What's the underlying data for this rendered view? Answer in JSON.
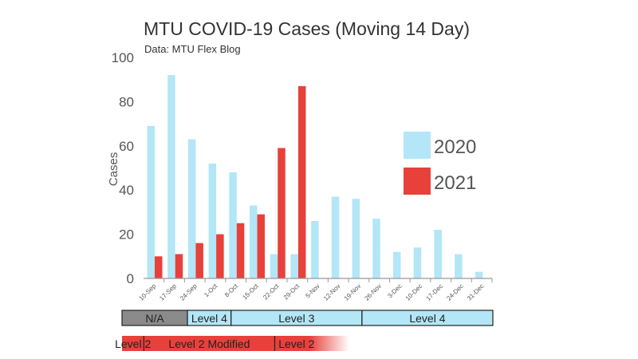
{
  "chart_data": {
    "type": "bar",
    "title": "MTU COVID-19 Cases (Moving 14 Day)",
    "subtitle": "Data: MTU Flex Blog",
    "ylabel": "Cases",
    "xlabel": "",
    "ylim": [
      0,
      100
    ],
    "yticks": [
      0,
      20,
      40,
      60,
      80,
      100
    ],
    "categories": [
      "10-Sep",
      "17-Sep",
      "24-Sep",
      "1-Oct",
      "8-Oct",
      "15-Oct",
      "22-Oct",
      "29-Oct",
      "5-Nov",
      "12-Nov",
      "19-Nov",
      "26-Nov",
      "3-Dec",
      "10-Dec",
      "17-Dec",
      "24-Dec",
      "31-Dec"
    ],
    "series": [
      {
        "name": "2020",
        "color": "#b3e6f7",
        "values": [
          69,
          92,
          63,
          52,
          48,
          33,
          11,
          11,
          26,
          37,
          36,
          27,
          12,
          14,
          22,
          11,
          3
        ]
      },
      {
        "name": "2021",
        "color": "#e8403a",
        "values": [
          10,
          11,
          16,
          20,
          25,
          29,
          59,
          87,
          null,
          null,
          null,
          null,
          null,
          null,
          null,
          null,
          null
        ]
      }
    ],
    "legend_position": "right",
    "grid": false
  },
  "levels_2020": [
    {
      "label": "N/A",
      "start": 0,
      "end": 3,
      "color": "#8a8a8a"
    },
    {
      "label": "Level 4",
      "start": 3,
      "end": 5,
      "color": "#b3e6f7"
    },
    {
      "label": "Level 3",
      "start": 5,
      "end": 11,
      "color": "#b3e6f7"
    },
    {
      "label": "Level 4",
      "start": 11,
      "end": 17,
      "color": "#b3e6f7"
    }
  ],
  "levels_2021": [
    {
      "label": "Level 2",
      "start": 0,
      "end": 1,
      "color": "#e8403a"
    },
    {
      "label": "Level 2 Modified",
      "start": 1,
      "end": 7,
      "color": "#e8403a"
    },
    {
      "label": "Level 2",
      "start": 7,
      "end": 9,
      "color": "#e8403a"
    }
  ]
}
